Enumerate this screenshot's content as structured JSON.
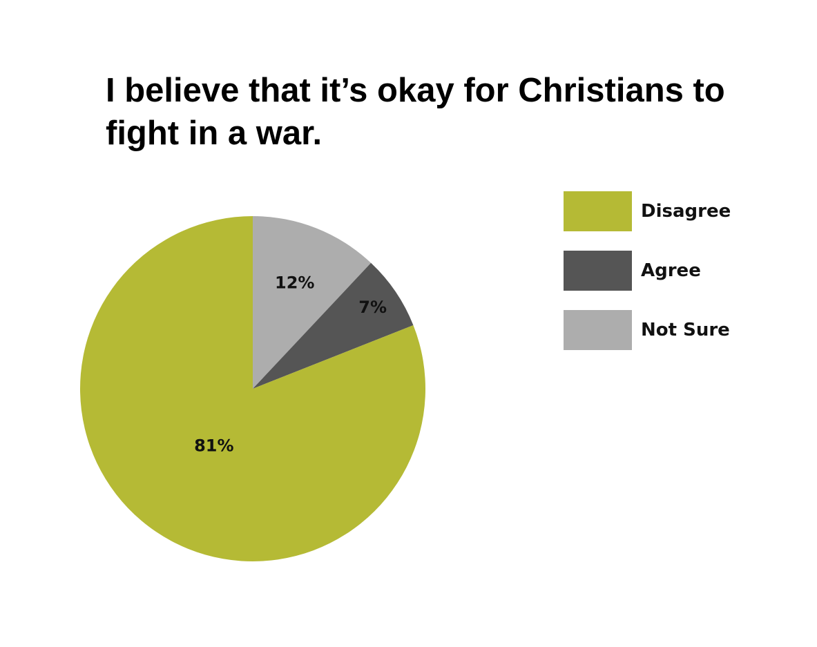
{
  "chart_data": {
    "type": "pie",
    "title": "I believe that it’s okay for Christians to fight in a war.",
    "slices": [
      {
        "label": "Not Sure",
        "value": 12,
        "display": "12%",
        "color": "#adadad"
      },
      {
        "label": "Agree",
        "value": 7,
        "display": "7%",
        "color": "#555555"
      },
      {
        "label": "Disagree",
        "value": 81,
        "display": "81%",
        "color": "#b5ba35"
      }
    ],
    "legend": {
      "placement": "right",
      "entries": [
        {
          "label": "Disagree",
          "color": "#b5ba35"
        },
        {
          "label": "Agree",
          "color": "#555555"
        },
        {
          "label": "Not Sure",
          "color": "#adadad"
        }
      ]
    }
  }
}
